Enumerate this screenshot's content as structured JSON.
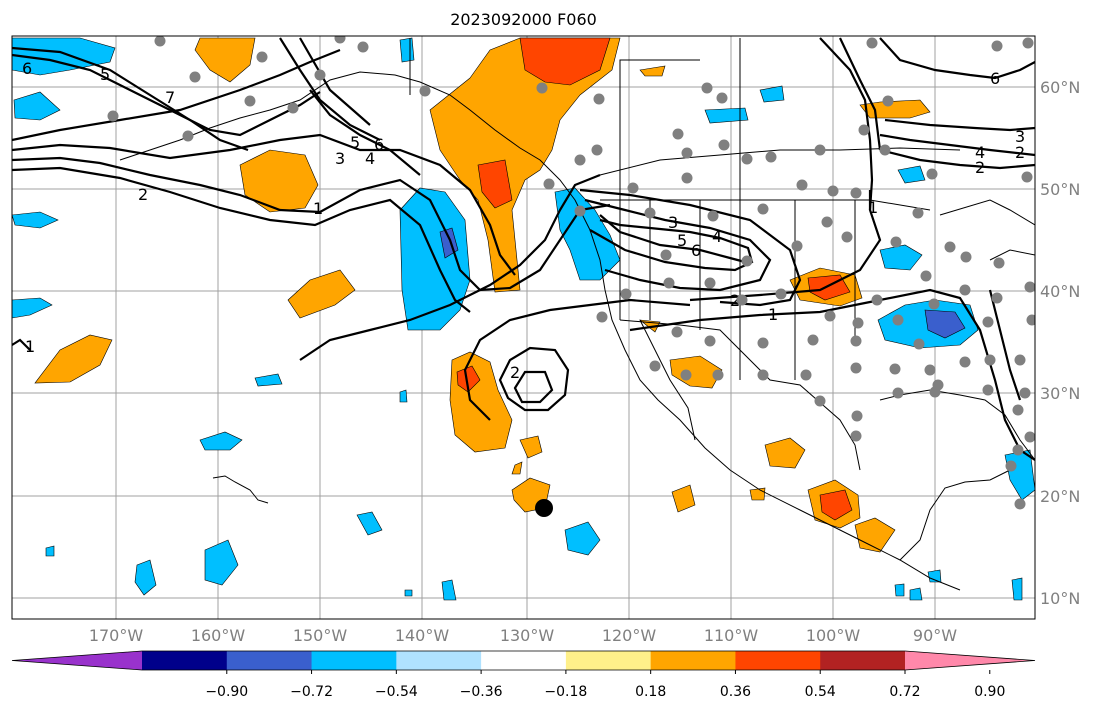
{
  "title": "2023092000 F060",
  "map": {
    "lat_labels": [
      "60°N",
      "50°N",
      "40°N",
      "30°N",
      "20°N",
      "10°N"
    ],
    "lon_labels": [
      "170°W",
      "160°W",
      "150°W",
      "140°W",
      "130°W",
      "120°W",
      "110°W",
      "100°W",
      "90°W"
    ],
    "contour_labels": [
      "6",
      "5",
      "7",
      "3",
      "4",
      "5",
      "6",
      "2",
      "1",
      "1",
      "2",
      "3",
      "5",
      "6",
      "4",
      "1",
      "2",
      "1",
      "2",
      "6",
      "4",
      "3",
      "2"
    ],
    "marker": "black-dot"
  },
  "colorbar": {
    "ticks": [
      "−0.90",
      "−0.72",
      "−0.54",
      "−0.36",
      "−0.18",
      "0.18",
      "0.36",
      "0.54",
      "0.72",
      "0.90"
    ],
    "colors": [
      "#9932cc",
      "#00008b",
      "#3a5fcd",
      "#00bfff",
      "#b0e2ff",
      "#ffffff",
      "#fff08a",
      "#ffa500",
      "#ff4500",
      "#b22222",
      "#ff88aa"
    ]
  }
}
